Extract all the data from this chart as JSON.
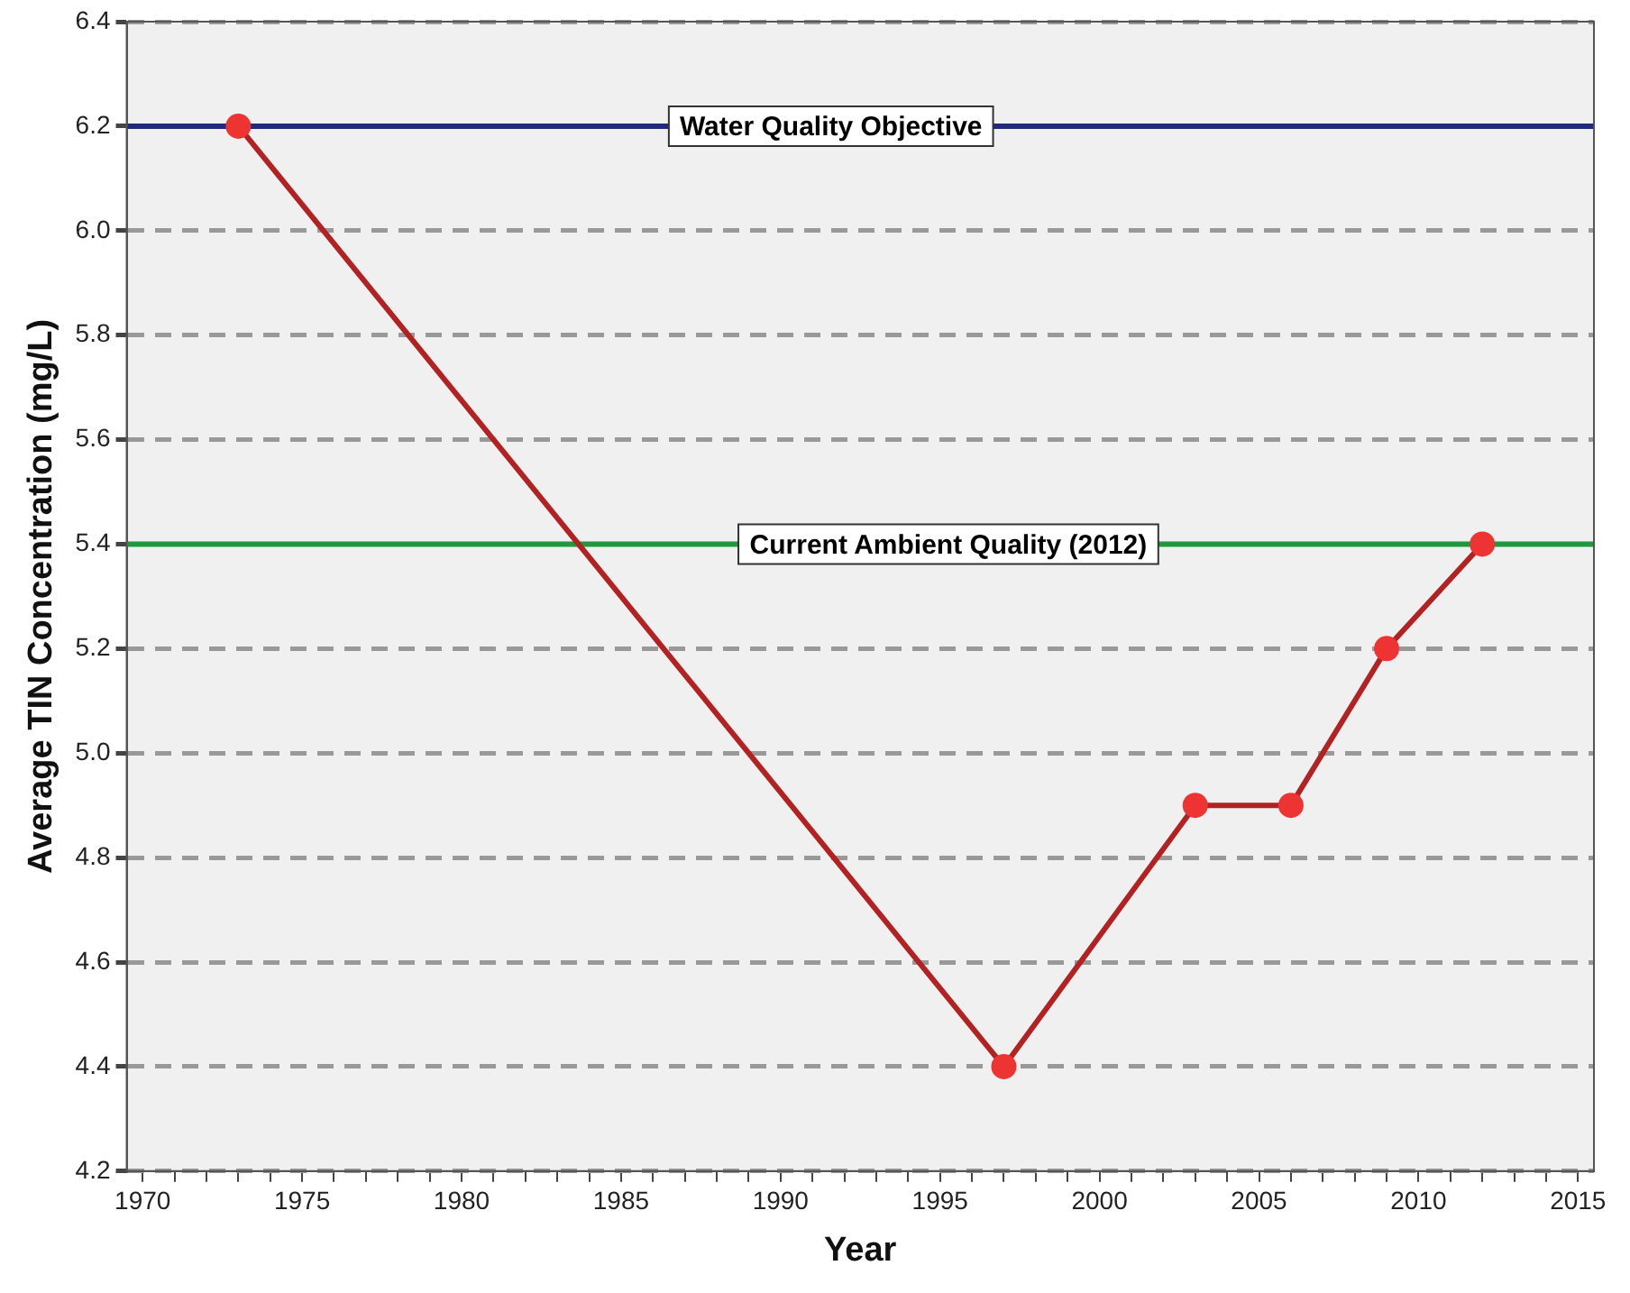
{
  "chart_data": {
    "type": "line",
    "xlabel": "Year",
    "ylabel": "Average TIN Concentration (mg/L)",
    "x": [
      1973,
      1997,
      2003,
      2006,
      2009,
      2012
    ],
    "series": [
      {
        "color": "#b22222",
        "values": [
          6.2,
          4.4,
          4.9,
          4.9,
          5.2,
          5.4
        ]
      }
    ],
    "marker": "circle",
    "line_style": "solid",
    "grid": "y",
    "legend": false,
    "xlim": [
      1969.5,
      2015.5
    ],
    "xticks": [
      1970,
      {
        "value": 1971,
        "label": null
      },
      {
        "value": 1972,
        "label": null
      },
      {
        "value": 1973,
        "label": null
      },
      {
        "value": 1974,
        "label": null
      },
      1975,
      {
        "value": 1976,
        "label": null
      },
      {
        "value": 1977,
        "label": null
      },
      {
        "value": 1978,
        "label": null
      },
      {
        "value": 1979,
        "label": null
      },
      1980,
      {
        "value": 1981,
        "label": null
      },
      {
        "value": 1982,
        "label": null
      },
      {
        "value": 1983,
        "label": null
      },
      {
        "value": 1984,
        "label": null
      },
      1985,
      {
        "value": 1986,
        "label": null
      },
      {
        "value": 1987,
        "label": null
      },
      {
        "value": 1988,
        "label": null
      },
      {
        "value": 1989,
        "label": null
      },
      1990,
      {
        "value": 1991,
        "label": null
      },
      {
        "value": 1992,
        "label": null
      },
      {
        "value": 1993,
        "label": null
      },
      {
        "value": 1994,
        "label": null
      },
      1995,
      {
        "value": 1996,
        "label": null
      },
      {
        "value": 1997,
        "label": null
      },
      {
        "value": 1998,
        "label": null
      },
      {
        "value": 1999,
        "label": null
      },
      2000,
      {
        "value": 2001,
        "label": null
      },
      {
        "value": 2002,
        "label": null
      },
      {
        "value": 2003,
        "label": null
      },
      {
        "value": 2004,
        "label": null
      },
      2005,
      {
        "value": 2006,
        "label": null
      },
      {
        "value": 2007,
        "label": null
      },
      {
        "value": 2008,
        "label": null
      },
      {
        "value": 2009,
        "label": null
      },
      2010,
      {
        "value": 2011,
        "label": null
      },
      {
        "value": 2012,
        "label": null
      },
      {
        "value": 2013,
        "label": null
      },
      {
        "value": 2014,
        "label": null
      },
      2015
    ],
    "ylim": [
      4.2,
      6.4
    ],
    "yticks": [
      4.2,
      4.4,
      4.6,
      4.8,
      {
        "value": 5.0,
        "label": "5.0"
      },
      5.2,
      5.4,
      5.6,
      5.8,
      {
        "value": 6.0,
        "label": "6.0"
      },
      6.2,
      6.4
    ],
    "ref_lines": [
      {
        "axis": "y",
        "value": 6.2,
        "label": "Water Quality Objective",
        "color": "#1f2a7a"
      },
      {
        "axis": "y",
        "value": 5.4,
        "label": "Current Ambient Quality (2012)",
        "color": "#1e9a3c"
      }
    ]
  }
}
